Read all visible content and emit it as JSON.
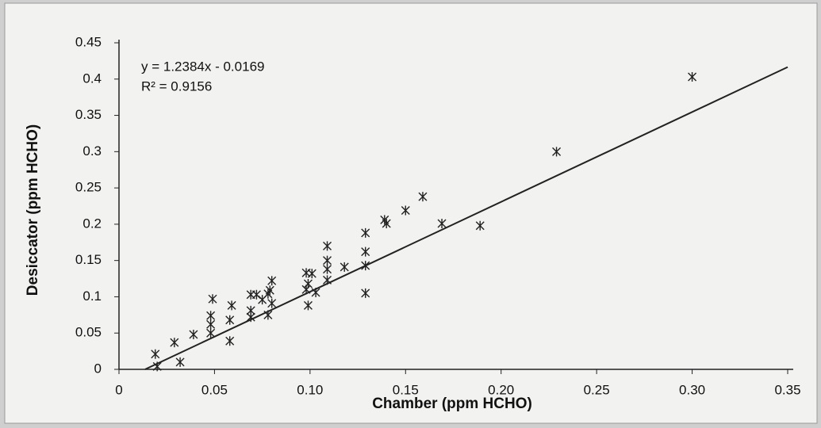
{
  "chart_data": {
    "type": "scatter",
    "x_label": "Chamber (ppm HCHO)",
    "y_label": "Desiccator (ppm HCHO)",
    "annotations": [
      "y = 1.2384x - 0.0169",
      "R² = 0.9156"
    ],
    "trendline": {
      "slope": 1.2384,
      "intercept": -0.0169,
      "color": "#222222"
    },
    "color": "#222222",
    "xlim": [
      0,
      0.35
    ],
    "xticks": [
      0,
      0.05,
      {
        "value": 0.1,
        "label": "0.10"
      },
      0.15,
      {
        "value": 0.2,
        "label": "0.20"
      },
      0.25,
      {
        "value": 0.3,
        "label": "0.30"
      },
      0.35
    ],
    "ylim": [
      0,
      0.45
    ],
    "yticks": [
      0,
      0.05,
      0.1,
      0.15,
      0.2,
      0.25,
      0.3,
      0.35,
      0.4,
      0.45
    ],
    "grid": false,
    "x": [
      0.019,
      0.02,
      0.029,
      0.032,
      0.039,
      0.048,
      0.048,
      0.049,
      0.048,
      0.058,
      0.059,
      0.058,
      0.069,
      0.069,
      0.069,
      0.072,
      0.075,
      0.078,
      0.079,
      0.08,
      0.08,
      0.078,
      0.098,
      0.098,
      0.099,
      0.101,
      0.103,
      0.099,
      0.109,
      0.109,
      0.109,
      0.109,
      0.118,
      0.129,
      0.129,
      0.129,
      0.129,
      0.139,
      0.14,
      0.15,
      0.159,
      0.169,
      0.189,
      0.229,
      0.3
    ],
    "values": [
      0.021,
      0.004,
      0.037,
      0.01,
      0.048,
      0.062,
      0.074,
      0.097,
      0.05,
      0.068,
      0.088,
      0.039,
      0.081,
      0.072,
      0.103,
      0.103,
      0.096,
      0.104,
      0.109,
      0.122,
      0.091,
      0.075,
      0.133,
      0.11,
      0.118,
      0.132,
      0.106,
      0.088,
      0.138,
      0.123,
      0.17,
      0.15,
      0.141,
      0.188,
      0.162,
      0.143,
      0.105,
      0.206,
      0.201,
      0.219,
      0.238,
      0.201,
      0.198,
      0.3,
      0.403
    ]
  }
}
